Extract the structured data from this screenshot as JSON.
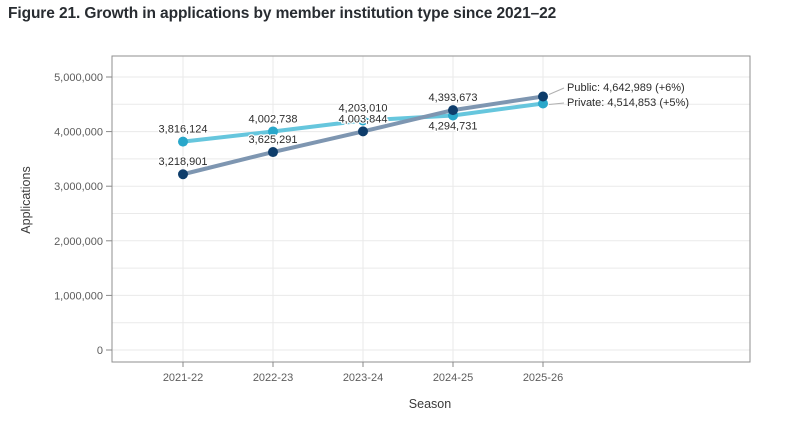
{
  "title": "Figure 21. Growth in applications by member institution type since 2021–22",
  "chart_data": {
    "type": "line",
    "title": "Figure 21. Growth in applications by member institution type since 2021–22",
    "xlabel": "Season",
    "ylabel": "Applications",
    "categories": [
      "2021-22",
      "2022-23",
      "2023-24",
      "2024-25",
      "2025-26"
    ],
    "series": [
      {
        "name": "Public",
        "values": [
          3218901,
          3625291,
          4003844,
          4393673,
          4642989
        ],
        "point_labels": [
          "3,218,901",
          "3,625,291",
          "4,003,844",
          "4,393,673",
          null
        ],
        "label_pos": [
          "above",
          "above",
          "above",
          "above",
          null
        ],
        "end_label": "Public: 4,642,989 (+6%)",
        "line_color": "#7e96b1",
        "point_color": "#0e3d6b"
      },
      {
        "name": "Private",
        "values": [
          3816124,
          4002738,
          4203010,
          4294731,
          4514853
        ],
        "point_labels": [
          "3,816,124",
          "4,002,738",
          "4,203,010",
          "4,294,731",
          null
        ],
        "label_pos": [
          "above",
          "above",
          "above",
          "below",
          null
        ],
        "end_label": "Private: 4,514,853 (+5%)",
        "line_color": "#66c6dd",
        "point_color": "#29a7ca"
      }
    ],
    "y_ticks": [
      {
        "value": 0,
        "label": "0"
      },
      {
        "value": 1000000,
        "label": "1,000,000"
      },
      {
        "value": 2000000,
        "label": "2,000,000"
      },
      {
        "value": 3000000,
        "label": "3,000,000"
      },
      {
        "value": 4000000,
        "label": "4,000,000"
      },
      {
        "value": 5000000,
        "label": "5,000,000"
      }
    ],
    "ylim": [
      0,
      5000000
    ],
    "grid": {
      "horizontal_step": 500000,
      "vertical": "at each season tick"
    },
    "legend_position": "end-of-line annotations, right side"
  }
}
